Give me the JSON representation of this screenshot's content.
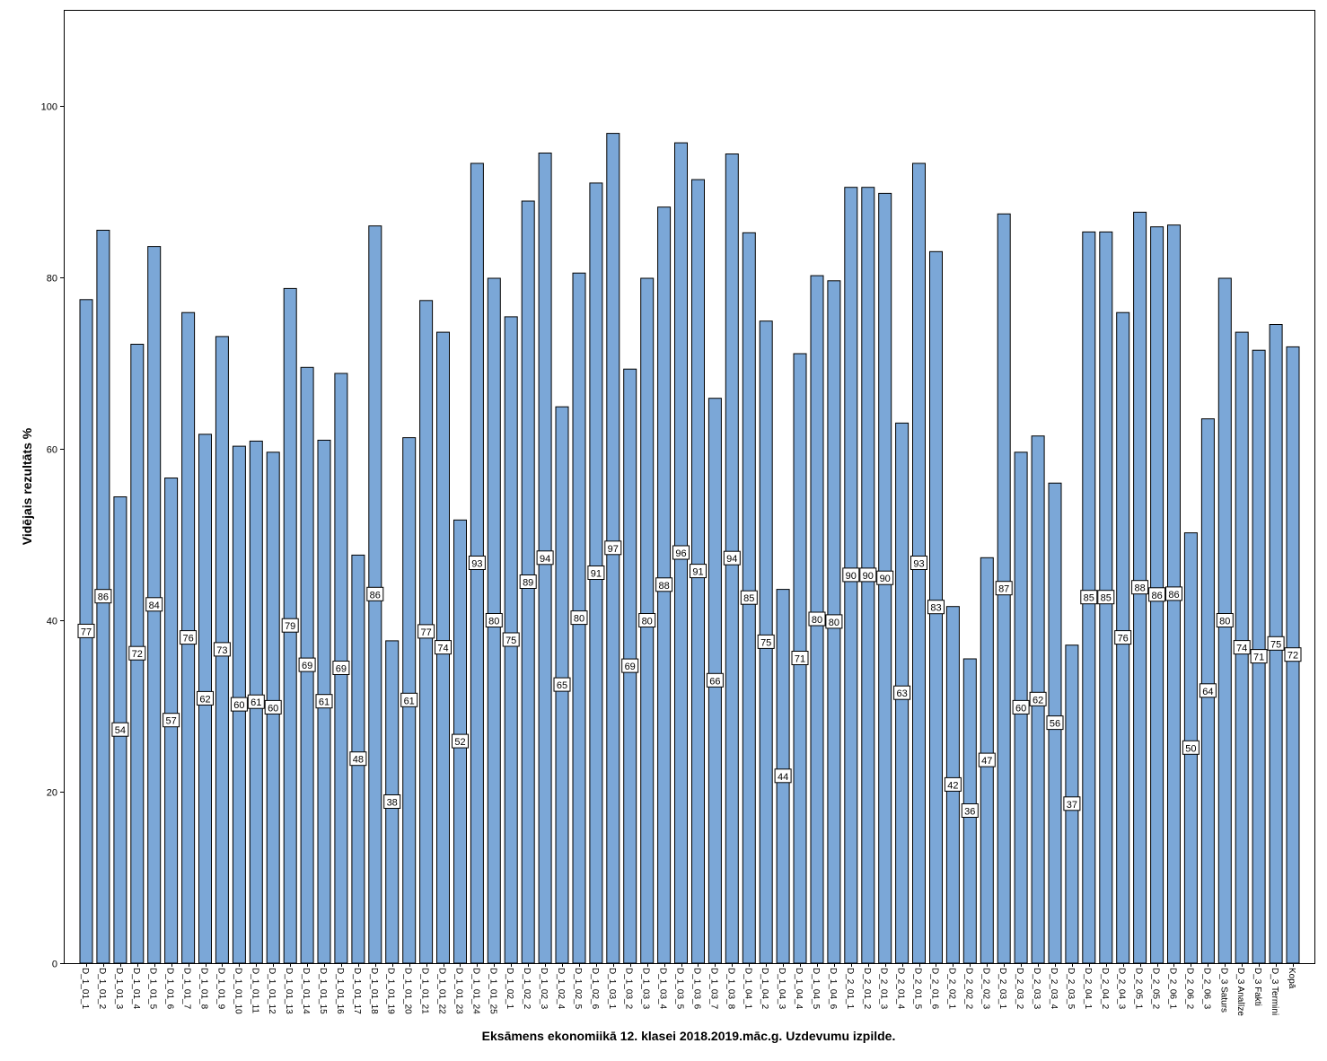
{
  "chart_data": {
    "type": "bar",
    "title": "",
    "xlabel": "Eksāmens ekonomiikā 12. klasei 2018.2019.māc.g. Uzdevumu izpilde.",
    "ylabel": "Vidējais rezultāts %",
    "ylim": [
      0,
      112
    ],
    "yticks": [
      0,
      20,
      40,
      60,
      80,
      100
    ],
    "grid": false,
    "legend": "none",
    "bar_color": "#7ba7d7",
    "bar_edge_color": "#000000",
    "categories": [
      "D_1_01_1",
      "D_1_01_2",
      "D_1_01_3",
      "D_1_01_4",
      "D_1_01_5",
      "D_1_01_6",
      "D_1_01_7",
      "D_1_01_8",
      "D_1_01_9",
      "D_1_01_10",
      "D_1_01_11",
      "D_1_01_12",
      "D_1_01_13",
      "D_1_01_14",
      "D_1_01_15",
      "D_1_01_16",
      "D_1_01_17",
      "D_1_01_18",
      "D_1_01_19",
      "D_1_01_20",
      "D_1_01_21",
      "D_1_01_22",
      "D_1_01_23",
      "D_1_01_24",
      "D_1_01_25",
      "D_1_02_1",
      "D_1_02_2",
      "D_1_02_3",
      "D_1_02_4",
      "D_1_02_5",
      "D_1_02_6",
      "D_1_03_1",
      "D_1_03_2",
      "D_1_03_3",
      "D_1_03_4",
      "D_1_03_5",
      "D_1_03_6",
      "D_1_03_7",
      "D_1_03_8",
      "D_1_04_1",
      "D_1_04_2",
      "D_1_04_3",
      "D_1_04_4",
      "D_1_04_5",
      "D_1_04_6",
      "D_2_01_1",
      "D_2_01_2",
      "D_2_01_3",
      "D_2_01_4",
      "D_2_01_5",
      "D_2_01_6",
      "D_2_02_1",
      "D_2_02_2",
      "D_2_02_3",
      "D_2_03_1",
      "D_2_03_2",
      "D_2_03_3",
      "D_2_03_4",
      "D_2_03_5",
      "D_2_04_1",
      "D_2_04_2",
      "D_2_04_3",
      "D_2_05_1",
      "D_2_05_2",
      "D_2_06_1",
      "D_2_06_2",
      "D_2_06_3",
      "D_3 Saturs",
      "D_3 Analīze",
      "D_3 Fakti",
      "D_3 Termini",
      "Kopā"
    ],
    "values": [
      77.4,
      85.5,
      54.4,
      72.2,
      83.6,
      56.6,
      75.9,
      61.7,
      73.1,
      60.3,
      60.9,
      59.6,
      78.7,
      69.5,
      61.0,
      68.8,
      47.6,
      86.0,
      37.6,
      61.3,
      77.3,
      73.6,
      51.7,
      93.3,
      79.9,
      75.4,
      88.9,
      94.5,
      64.9,
      80.5,
      91.0,
      96.8,
      69.3,
      79.9,
      88.2,
      95.7,
      91.4,
      65.9,
      94.4,
      85.2,
      74.9,
      43.6,
      71.1,
      80.2,
      79.6,
      90.5,
      90.5,
      89.8,
      63.0,
      93.3,
      83.0,
      41.6,
      35.5,
      47.3,
      87.4,
      59.6,
      61.5,
      56.0,
      37.1,
      85.3,
      85.3,
      75.9,
      87.6,
      85.9,
      86.1,
      50.2,
      63.5,
      79.9,
      73.6,
      71.5,
      74.5,
      71.9
    ],
    "labels": [
      "77",
      "86",
      "54",
      "72",
      "84",
      "57",
      "76",
      "62",
      "73",
      "60",
      "61",
      "60",
      "79",
      "69",
      "61",
      "69",
      "48",
      "86",
      "38",
      "61",
      "77",
      "74",
      "52",
      "93",
      "80",
      "75",
      "89",
      "94",
      "65",
      "80",
      "91",
      "97",
      "69",
      "80",
      "88",
      "96",
      "91",
      "66",
      "94",
      "85",
      "75",
      "44",
      "71",
      "80",
      "80",
      "90",
      "90",
      "90",
      "63",
      "93",
      "83",
      "42",
      "36",
      "47",
      "87",
      "60",
      "62",
      "56",
      "37",
      "85",
      "85",
      "76",
      "88",
      "86",
      "86",
      "50",
      "64",
      "80",
      "74",
      "71",
      "75",
      "72"
    ]
  }
}
